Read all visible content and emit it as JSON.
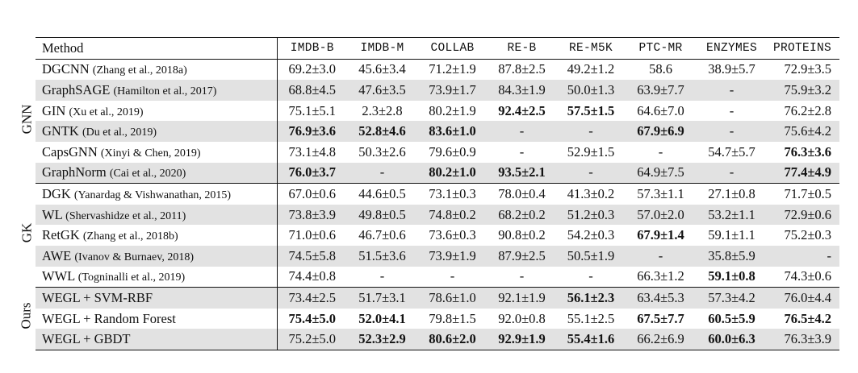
{
  "headers": {
    "method": "Method",
    "datasets": [
      "IMDB-B",
      "IMDB-M",
      "COLLAB",
      "RE-B",
      "RE-M5K",
      "PTC-MR",
      "ENZYMES",
      "PROTEINS"
    ]
  },
  "groups": [
    {
      "label": "GNN",
      "rows": [
        {
          "name": "DGCNN",
          "cite": "(Zhang et al., 2018a)",
          "gray": false,
          "values": [
            "69.2±3.0",
            "45.6±3.4",
            "71.2±1.9",
            "87.8±2.5",
            "49.2±1.2",
            "58.6",
            "38.9±5.7",
            "72.9±3.5"
          ],
          "bold": [
            false,
            false,
            false,
            false,
            false,
            false,
            false,
            false
          ]
        },
        {
          "name": "GraphSAGE",
          "cite": "(Hamilton et al., 2017)",
          "gray": true,
          "values": [
            "68.8±4.5",
            "47.6±3.5",
            "73.9±1.7",
            "84.3±1.9",
            "50.0±1.3",
            "63.9±7.7",
            "-",
            "75.9±3.2"
          ],
          "bold": [
            false,
            false,
            false,
            false,
            false,
            false,
            false,
            false
          ]
        },
        {
          "name": "GIN",
          "cite": "(Xu et al., 2019)",
          "gray": false,
          "values": [
            "75.1±5.1",
            "2.3±2.8",
            "80.2±1.9",
            "92.4±2.5",
            "57.5±1.5",
            "64.6±7.0",
            "-",
            "76.2±2.8"
          ],
          "bold": [
            false,
            false,
            false,
            true,
            true,
            false,
            false,
            false
          ]
        },
        {
          "name": "GNTK",
          "cite": "(Du et al., 2019)",
          "gray": true,
          "values": [
            "76.9±3.6",
            "52.8±4.6",
            "83.6±1.0",
            "-",
            "-",
            "67.9±6.9",
            "-",
            "75.6±4.2"
          ],
          "bold": [
            true,
            true,
            true,
            false,
            false,
            true,
            false,
            false
          ]
        },
        {
          "name": "CapsGNN",
          "cite": "(Xinyi & Chen, 2019)",
          "gray": false,
          "values": [
            "73.1±4.8",
            "50.3±2.6",
            "79.6±0.9",
            "-",
            "52.9±1.5",
            "-",
            "54.7±5.7",
            "76.3±3.6"
          ],
          "bold": [
            false,
            false,
            false,
            false,
            false,
            false,
            false,
            true
          ]
        },
        {
          "name": "GraphNorm",
          "cite": "(Cai et al., 2020)",
          "gray": true,
          "values": [
            "76.0±3.7",
            "-",
            "80.2±1.0",
            "93.5±2.1",
            "-",
            "64.9±7.5",
            "-",
            "77.4±4.9"
          ],
          "bold": [
            true,
            false,
            true,
            true,
            false,
            false,
            false,
            true
          ]
        }
      ]
    },
    {
      "label": "GK",
      "rows": [
        {
          "name": "DGK",
          "cite": "(Yanardag & Vishwanathan, 2015)",
          "gray": false,
          "values": [
            "67.0±0.6",
            "44.6±0.5",
            "73.1±0.3",
            "78.0±0.4",
            "41.3±0.2",
            "57.3±1.1",
            "27.1±0.8",
            "71.7±0.5"
          ],
          "bold": [
            false,
            false,
            false,
            false,
            false,
            false,
            false,
            false
          ]
        },
        {
          "name": "WL",
          "cite": "(Shervashidze et al., 2011)",
          "gray": true,
          "values": [
            "73.8±3.9",
            "49.8±0.5",
            "74.8±0.2",
            "68.2±0.2",
            "51.2±0.3",
            "57.0±2.0",
            "53.2±1.1",
            "72.9±0.6"
          ],
          "bold": [
            false,
            false,
            false,
            false,
            false,
            false,
            false,
            false
          ]
        },
        {
          "name": "RetGK",
          "cite": "(Zhang et al., 2018b)",
          "gray": false,
          "values": [
            "71.0±0.6",
            "46.7±0.6",
            "73.6±0.3",
            "90.8±0.2",
            "54.2±0.3",
            "67.9±1.4",
            "59.1±1.1",
            "75.2±0.3"
          ],
          "bold": [
            false,
            false,
            false,
            false,
            false,
            true,
            false,
            false
          ]
        },
        {
          "name": "AWE",
          "cite": "(Ivanov & Burnaev, 2018)",
          "gray": true,
          "values": [
            "74.5±5.8",
            "51.5±3.6",
            "73.9±1.9",
            "87.9±2.5",
            "50.5±1.9",
            "-",
            "35.8±5.9",
            "-"
          ],
          "bold": [
            false,
            false,
            false,
            false,
            false,
            false,
            false,
            false
          ]
        },
        {
          "name": "WWL",
          "cite": "(Togninalli et al., 2019)",
          "gray": false,
          "values": [
            "74.4±0.8",
            "-",
            "-",
            "-",
            "-",
            "66.3±1.2",
            "59.1±0.8",
            "74.3±0.6"
          ],
          "bold": [
            false,
            false,
            false,
            false,
            false,
            false,
            true,
            false
          ]
        }
      ]
    },
    {
      "label": "Ours",
      "rows": [
        {
          "name": "WEGL + SVM-RBF",
          "cite": "",
          "gray": true,
          "values": [
            "73.4±2.5",
            "51.7±3.1",
            "78.6±1.0",
            "92.1±1.9",
            "56.1±2.3",
            "63.4±5.3",
            "57.3±4.2",
            "76.0±4.4"
          ],
          "bold": [
            false,
            false,
            false,
            false,
            true,
            false,
            false,
            false
          ]
        },
        {
          "name": "WEGL + Random Forest",
          "cite": "",
          "gray": false,
          "values": [
            "75.4±5.0",
            "52.0±4.1",
            "79.8±1.5",
            "92.0±0.8",
            "55.1±2.5",
            "67.5±7.7",
            "60.5±5.9",
            "76.5±4.2"
          ],
          "bold": [
            true,
            true,
            false,
            false,
            false,
            true,
            true,
            true
          ]
        },
        {
          "name": "WEGL + GBDT",
          "cite": "",
          "gray": true,
          "values": [
            "75.2±5.0",
            "52.3±2.9",
            "80.6±2.0",
            "92.9±1.9",
            "55.4±1.6",
            "66.2±6.9",
            "60.0±6.3",
            "76.3±3.9"
          ],
          "bold": [
            false,
            true,
            true,
            true,
            true,
            false,
            true,
            false
          ]
        }
      ]
    }
  ]
}
